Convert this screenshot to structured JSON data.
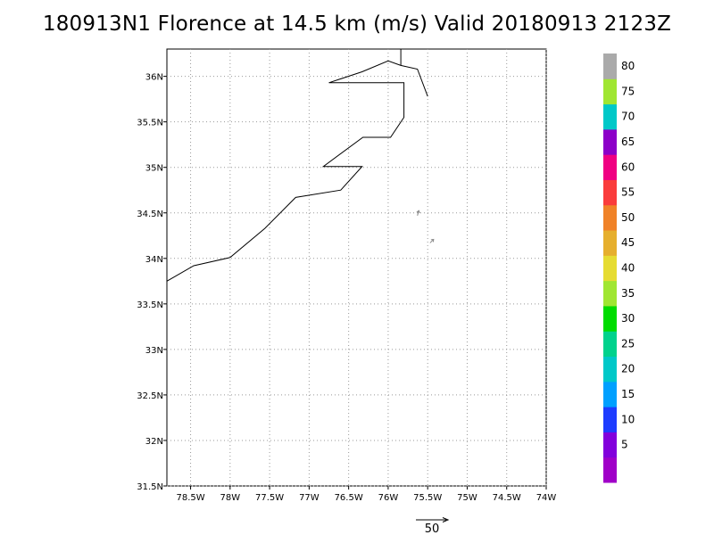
{
  "title": "180913N1 Florence at 14.5 km (m/s) Valid 20180913 2123Z",
  "map": {
    "lon_range": [
      -78.8,
      -74.0
    ],
    "lat_range": [
      31.5,
      36.3
    ],
    "lon_ticks": [
      -78.5,
      -78,
      -77.5,
      -77,
      -76.5,
      -76,
      -75.5,
      -75,
      -74.5,
      -74
    ],
    "lon_tick_labels": [
      "78.5W",
      "78W",
      "77.5W",
      "77W",
      "76.5W",
      "76W",
      "75.5W",
      "75W",
      "74.5W",
      "74W"
    ],
    "lat_ticks": [
      31.5,
      32,
      32.5,
      33,
      33.5,
      34,
      34.5,
      35,
      35.5,
      36
    ],
    "lat_tick_labels": [
      "31.5N",
      "32N",
      "32.5N",
      "33N",
      "33.5N",
      "34N",
      "34.5N",
      "35N",
      "35.5N",
      "36N"
    ],
    "grid": "dotted",
    "coastline": [
      [
        -78.8,
        33.75
      ],
      [
        -78.46,
        33.92
      ],
      [
        -78.0,
        34.01
      ],
      [
        -77.56,
        34.33
      ],
      [
        -77.17,
        34.67
      ],
      [
        -76.6,
        34.75
      ],
      [
        -76.33,
        35.01
      ],
      [
        -76.82,
        35.01
      ],
      [
        -76.32,
        35.33
      ],
      [
        -75.97,
        35.33
      ],
      [
        -75.8,
        35.55
      ],
      [
        -75.8,
        35.93
      ],
      [
        -76.75,
        35.93
      ],
      [
        -76.33,
        36.05
      ],
      [
        -76.0,
        36.17
      ],
      [
        -75.84,
        36.12
      ],
      [
        -75.63,
        36.08
      ],
      [
        -75.5,
        35.78
      ]
    ],
    "coastline_branch": [
      [
        -75.84,
        36.3
      ],
      [
        -75.84,
        36.12
      ]
    ],
    "wind_vectors": [
      {
        "lon": -75.63,
        "lat": 34.47,
        "u": 0.4,
        "v": 1.4
      },
      {
        "lon": -75.47,
        "lat": 34.17,
        "u": 1.0,
        "v": 1.0
      }
    ],
    "reference_vector": {
      "label": "50"
    }
  },
  "colorbar": {
    "labels": [
      "5",
      "10",
      "15",
      "20",
      "25",
      "30",
      "35",
      "40",
      "45",
      "50",
      "55",
      "60",
      "65",
      "70",
      "75",
      "80"
    ],
    "colors": [
      "#a000c8",
      "#8200dc",
      "#1e3cff",
      "#00a0ff",
      "#00c8c8",
      "#00d28c",
      "#00dc00",
      "#a0e632",
      "#e6dc32",
      "#e6af2d",
      "#f08228",
      "#fa3c3c",
      "#f00082",
      "#8c00c8",
      "#00c8c8",
      "#a0e632",
      "#aaaaaa"
    ]
  }
}
